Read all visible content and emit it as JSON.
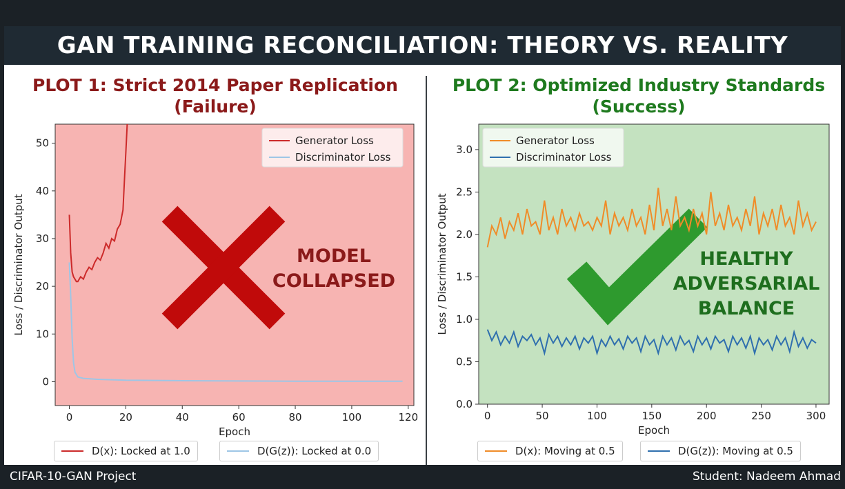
{
  "header": {
    "title": "GAN TRAINING RECONCILIATION: THEORY VS. REALITY"
  },
  "footer": {
    "project": "CIFAR-10-GAN Project",
    "student": "Student: Nadeem Ahmad"
  },
  "colors": {
    "failure_title": "#8b1a1a",
    "success_title": "#1e7a1e",
    "plot1_bg": "#f7b4b2",
    "plot2_bg": "#c4e2c0",
    "cross": "#c00a0a",
    "check": "#2e9a2e"
  },
  "icons": {
    "plot1_mark": "cross-mark-icon",
    "plot2_mark": "check-mark-icon"
  },
  "chart_data": [
    {
      "type": "line",
      "title_line1": "PLOT 1: Strict 2014 Paper Replication",
      "title_line2": "(Failure)",
      "xlabel": "Epoch",
      "ylabel": "Loss / Discriminator Output",
      "xlim": [
        -5,
        122
      ],
      "ylim": [
        -5,
        54
      ],
      "xticks": [
        "0",
        "20",
        "40",
        "60",
        "80",
        "100",
        "120"
      ],
      "yticks": [
        "0",
        "10",
        "20",
        "30",
        "40",
        "50"
      ],
      "grid": false,
      "legend_position": "top-right",
      "annotation": [
        "MODEL",
        "COLLAPSED"
      ],
      "series": [
        {
          "name": "Generator Loss",
          "color": "#cc2a2a",
          "x": [
            0,
            0.5,
            1,
            1.5,
            2,
            2.5,
            3,
            4,
            5,
            6,
            7,
            8,
            9,
            10,
            11,
            12,
            13,
            14,
            15,
            16,
            17,
            18,
            19,
            19.5,
            20,
            20.5
          ],
          "y": [
            35,
            27,
            23,
            22,
            21.5,
            21,
            21,
            22,
            21.5,
            23,
            24,
            23.5,
            25,
            26,
            25.5,
            27,
            29,
            28,
            30,
            29.5,
            32,
            33,
            36,
            42,
            48,
            54
          ]
        },
        {
          "name": "Discriminator Loss",
          "color": "#9ec6e6",
          "x": [
            0,
            0.5,
            1,
            1.5,
            2,
            3,
            5,
            10,
            20,
            40,
            60,
            80,
            100,
            118
          ],
          "y": [
            25,
            18,
            9,
            4,
            2,
            1,
            0.7,
            0.5,
            0.3,
            0.2,
            0.15,
            0.1,
            0.1,
            0.1
          ]
        }
      ],
      "bottom_legend": [
        {
          "label": "D(x): Locked at 1.0",
          "color": "#cc2a2a"
        },
        {
          "label": "D(G(z)): Locked at 0.0",
          "color": "#9ec6e6"
        }
      ]
    },
    {
      "type": "line",
      "title_line1": "PLOT 2: Optimized Industry Standards",
      "title_line2": "(Success)",
      "xlabel": "Epoch",
      "ylabel": "Loss / Discriminator Output",
      "xlim": [
        -8,
        312
      ],
      "ylim": [
        0,
        3.3
      ],
      "xticks": [
        "0",
        "50",
        "100",
        "150",
        "200",
        "250",
        "300"
      ],
      "yticks": [
        "0.0",
        "0.5",
        "1.0",
        "1.5",
        "2.0",
        "2.5",
        "3.0"
      ],
      "grid": false,
      "legend_position": "top-left",
      "annotation": [
        "HEALTHY",
        "ADVERSARIAL",
        "BALANCE"
      ],
      "series": [
        {
          "name": "Generator Loss",
          "color": "#f08c28",
          "x": [
            0,
            4,
            8,
            12,
            16,
            20,
            24,
            28,
            32,
            36,
            40,
            44,
            48,
            52,
            56,
            60,
            64,
            68,
            72,
            76,
            80,
            84,
            88,
            92,
            96,
            100,
            104,
            108,
            112,
            116,
            120,
            124,
            128,
            132,
            136,
            140,
            144,
            148,
            152,
            156,
            160,
            164,
            168,
            172,
            176,
            180,
            184,
            188,
            192,
            196,
            200,
            204,
            208,
            212,
            216,
            220,
            224,
            228,
            232,
            236,
            240,
            244,
            248,
            252,
            256,
            260,
            264,
            268,
            272,
            276,
            280,
            284,
            288,
            292,
            296,
            300
          ],
          "y": [
            1.85,
            2.1,
            2.0,
            2.2,
            1.95,
            2.15,
            2.05,
            2.25,
            2.0,
            2.3,
            2.1,
            2.15,
            2.0,
            2.4,
            2.05,
            2.2,
            2.0,
            2.3,
            2.1,
            2.2,
            2.05,
            2.25,
            2.1,
            2.15,
            2.05,
            2.2,
            2.1,
            2.4,
            2.0,
            2.25,
            2.1,
            2.2,
            2.05,
            2.3,
            2.1,
            2.2,
            2.0,
            2.35,
            2.05,
            2.55,
            2.1,
            2.3,
            2.05,
            2.45,
            2.1,
            2.2,
            2.05,
            2.3,
            2.1,
            2.25,
            2.0,
            2.5,
            2.1,
            2.25,
            2.05,
            2.35,
            2.1,
            2.2,
            2.05,
            2.3,
            2.1,
            2.45,
            2.0,
            2.25,
            2.1,
            2.3,
            2.05,
            2.35,
            2.1,
            2.2,
            2.0,
            2.4,
            2.1,
            2.25,
            2.05,
            2.15
          ]
        },
        {
          "name": "Discriminator Loss",
          "color": "#2f6fae",
          "x": [
            0,
            4,
            8,
            12,
            16,
            20,
            24,
            28,
            32,
            36,
            40,
            44,
            48,
            52,
            56,
            60,
            64,
            68,
            72,
            76,
            80,
            84,
            88,
            92,
            96,
            100,
            104,
            108,
            112,
            116,
            120,
            124,
            128,
            132,
            136,
            140,
            144,
            148,
            152,
            156,
            160,
            164,
            168,
            172,
            176,
            180,
            184,
            188,
            192,
            196,
            200,
            204,
            208,
            212,
            216,
            220,
            224,
            228,
            232,
            236,
            240,
            244,
            248,
            252,
            256,
            260,
            264,
            268,
            272,
            276,
            280,
            284,
            288,
            292,
            296,
            300
          ],
          "y": [
            0.88,
            0.75,
            0.85,
            0.7,
            0.8,
            0.72,
            0.85,
            0.68,
            0.8,
            0.75,
            0.82,
            0.7,
            0.78,
            0.6,
            0.82,
            0.72,
            0.8,
            0.68,
            0.78,
            0.7,
            0.8,
            0.65,
            0.78,
            0.72,
            0.8,
            0.6,
            0.76,
            0.68,
            0.8,
            0.7,
            0.77,
            0.65,
            0.8,
            0.72,
            0.78,
            0.62,
            0.8,
            0.7,
            0.76,
            0.6,
            0.8,
            0.7,
            0.78,
            0.64,
            0.8,
            0.7,
            0.75,
            0.62,
            0.8,
            0.7,
            0.78,
            0.65,
            0.8,
            0.72,
            0.76,
            0.62,
            0.8,
            0.7,
            0.78,
            0.66,
            0.8,
            0.6,
            0.78,
            0.7,
            0.76,
            0.64,
            0.8,
            0.7,
            0.78,
            0.62,
            0.85,
            0.68,
            0.78,
            0.66,
            0.76,
            0.72
          ]
        }
      ],
      "bottom_legend": [
        {
          "label": "D(x): Moving at 0.5",
          "color": "#f08c28"
        },
        {
          "label": "D(G(z)): Moving at 0.5",
          "color": "#2f6fae"
        }
      ]
    }
  ]
}
